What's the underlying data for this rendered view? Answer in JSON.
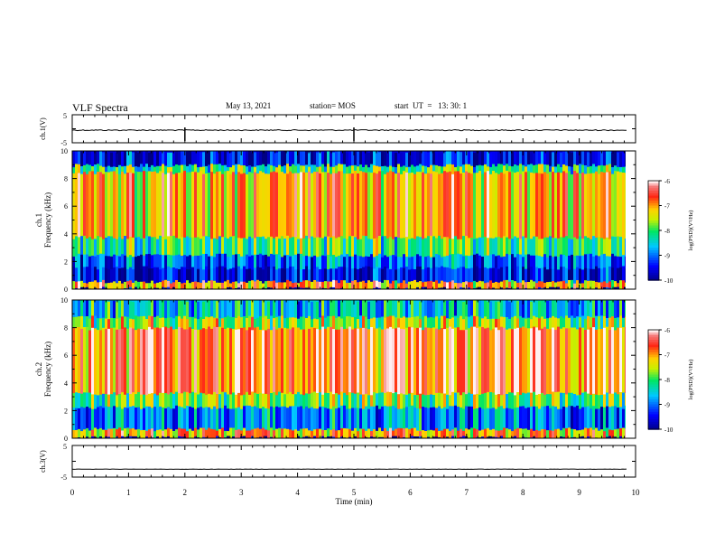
{
  "header": {
    "title": "VLF Spectra",
    "date": "May 13, 2021",
    "station": "station= MOS",
    "start": "start  UT  =   13: 30: 1"
  },
  "colorbar": {
    "label": "log(PSD)(V²/Hz)",
    "ticks": [
      "-6",
      "-7",
      "-8",
      "-9",
      "-10"
    ]
  },
  "chart_data": [
    {
      "type": "line",
      "panel": "ch.1(V)",
      "ylabel": "ch.1(V)",
      "ylim": [
        -5,
        5
      ],
      "yticks": [
        "5",
        "-5"
      ],
      "xlim": [
        0,
        10
      ],
      "series": [
        {
          "values": [
            -0.5,
            -0.5
          ]
        }
      ]
    },
    {
      "type": "heatmap",
      "panel": "ch.1 spectrogram",
      "ylabel": "ch.1 Frequency (kHz)",
      "ylim": [
        0,
        10
      ],
      "yticks": [
        "0",
        "2",
        "4",
        "6",
        "8",
        "10"
      ],
      "xlim": [
        0,
        9.85
      ],
      "bands": [
        {
          "from": 0,
          "to": 0.3,
          "level": -10
        },
        {
          "from": 0.3,
          "to": 0.8,
          "level": -7
        },
        {
          "from": 0.8,
          "to": 1.8,
          "level": -9.5
        },
        {
          "from": 1.8,
          "to": 2.7,
          "level": -9
        },
        {
          "from": 2.7,
          "to": 4.0,
          "level": -8
        },
        {
          "from": 4.0,
          "to": 8.7,
          "level": -7
        },
        {
          "from": 8.7,
          "to": 9.2,
          "level": -8
        },
        {
          "from": 9.2,
          "to": 10,
          "level": -9.5
        }
      ]
    },
    {
      "type": "heatmap",
      "panel": "ch.2 spectrogram",
      "ylabel": "ch.2 Frequency (kHz)",
      "ylim": [
        0,
        10
      ],
      "yticks": [
        "0",
        "2",
        "4",
        "6",
        "8",
        "10"
      ],
      "xlim": [
        0,
        9.85
      ],
      "bands": [
        {
          "from": 0,
          "to": 0.3,
          "level": -10
        },
        {
          "from": 0.3,
          "to": 0.9,
          "level": -7
        },
        {
          "from": 0.9,
          "to": 2.5,
          "level": -8.8
        },
        {
          "from": 2.5,
          "to": 3.5,
          "level": -7.8
        },
        {
          "from": 3.5,
          "to": 8.2,
          "level": -6.6
        },
        {
          "from": 8.2,
          "to": 9.0,
          "level": -7.6
        },
        {
          "from": 9.0,
          "to": 10,
          "level": -8.5
        }
      ]
    },
    {
      "type": "line",
      "panel": "ch.3(V)",
      "ylabel": "ch.3(V)",
      "ylim": [
        -5,
        5
      ],
      "yticks": [
        "5",
        "-5"
      ],
      "xlim": [
        0,
        10
      ],
      "series": [
        {
          "values": [
            -2.5,
            -2.5
          ]
        }
      ],
      "xlabel": "Time  (min)",
      "xticks": [
        "0",
        "1",
        "2",
        "3",
        "4",
        "5",
        "6",
        "7",
        "8",
        "9",
        "10"
      ]
    }
  ]
}
